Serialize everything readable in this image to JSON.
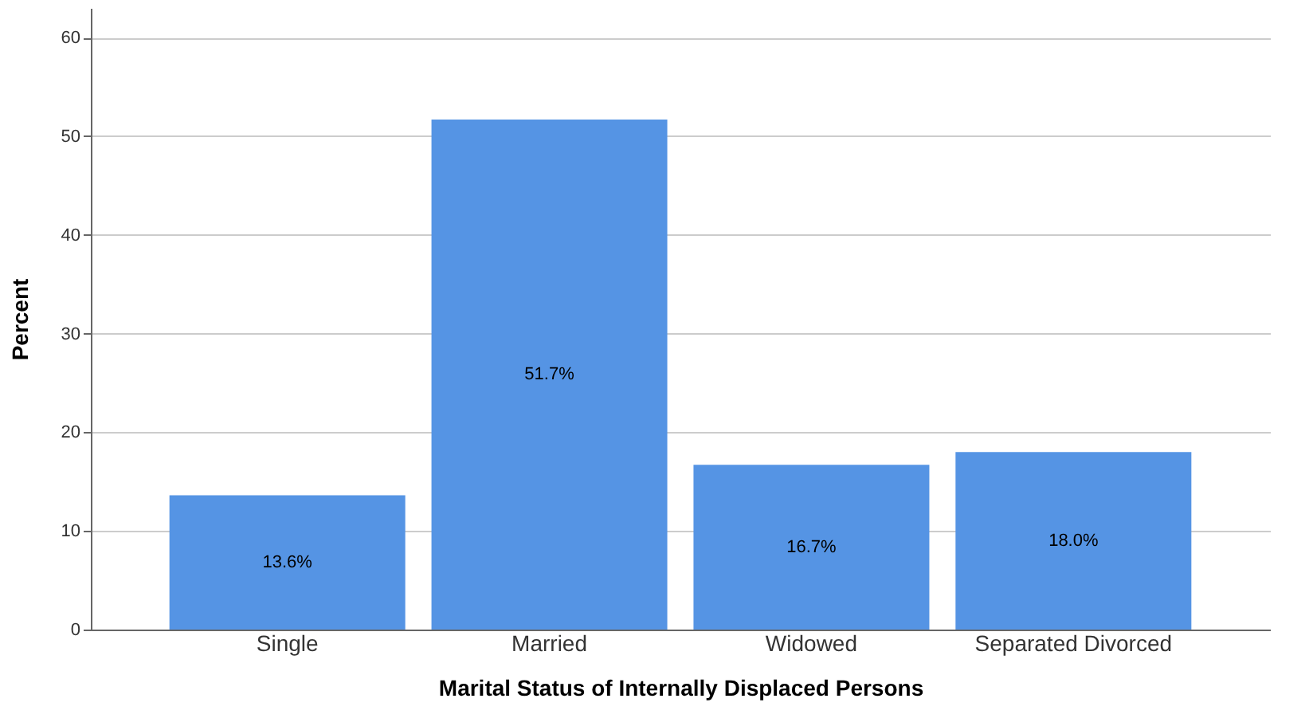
{
  "chart_data": {
    "type": "bar",
    "xlabel": "Marital Status of Internally Displaced Persons",
    "ylabel": "Percent",
    "categories": [
      "Single",
      "Married",
      "Widowed",
      "Separated Divorced"
    ],
    "values": [
      13.6,
      51.7,
      16.7,
      18.0
    ],
    "value_labels": [
      "13.6%",
      "51.7%",
      "16.7%",
      "18.0%"
    ],
    "color": "#5594e4",
    "ylim": [
      0,
      63
    ],
    "yticks": [
      0,
      10,
      20,
      30,
      40,
      50,
      60
    ],
    "grid": "y"
  }
}
